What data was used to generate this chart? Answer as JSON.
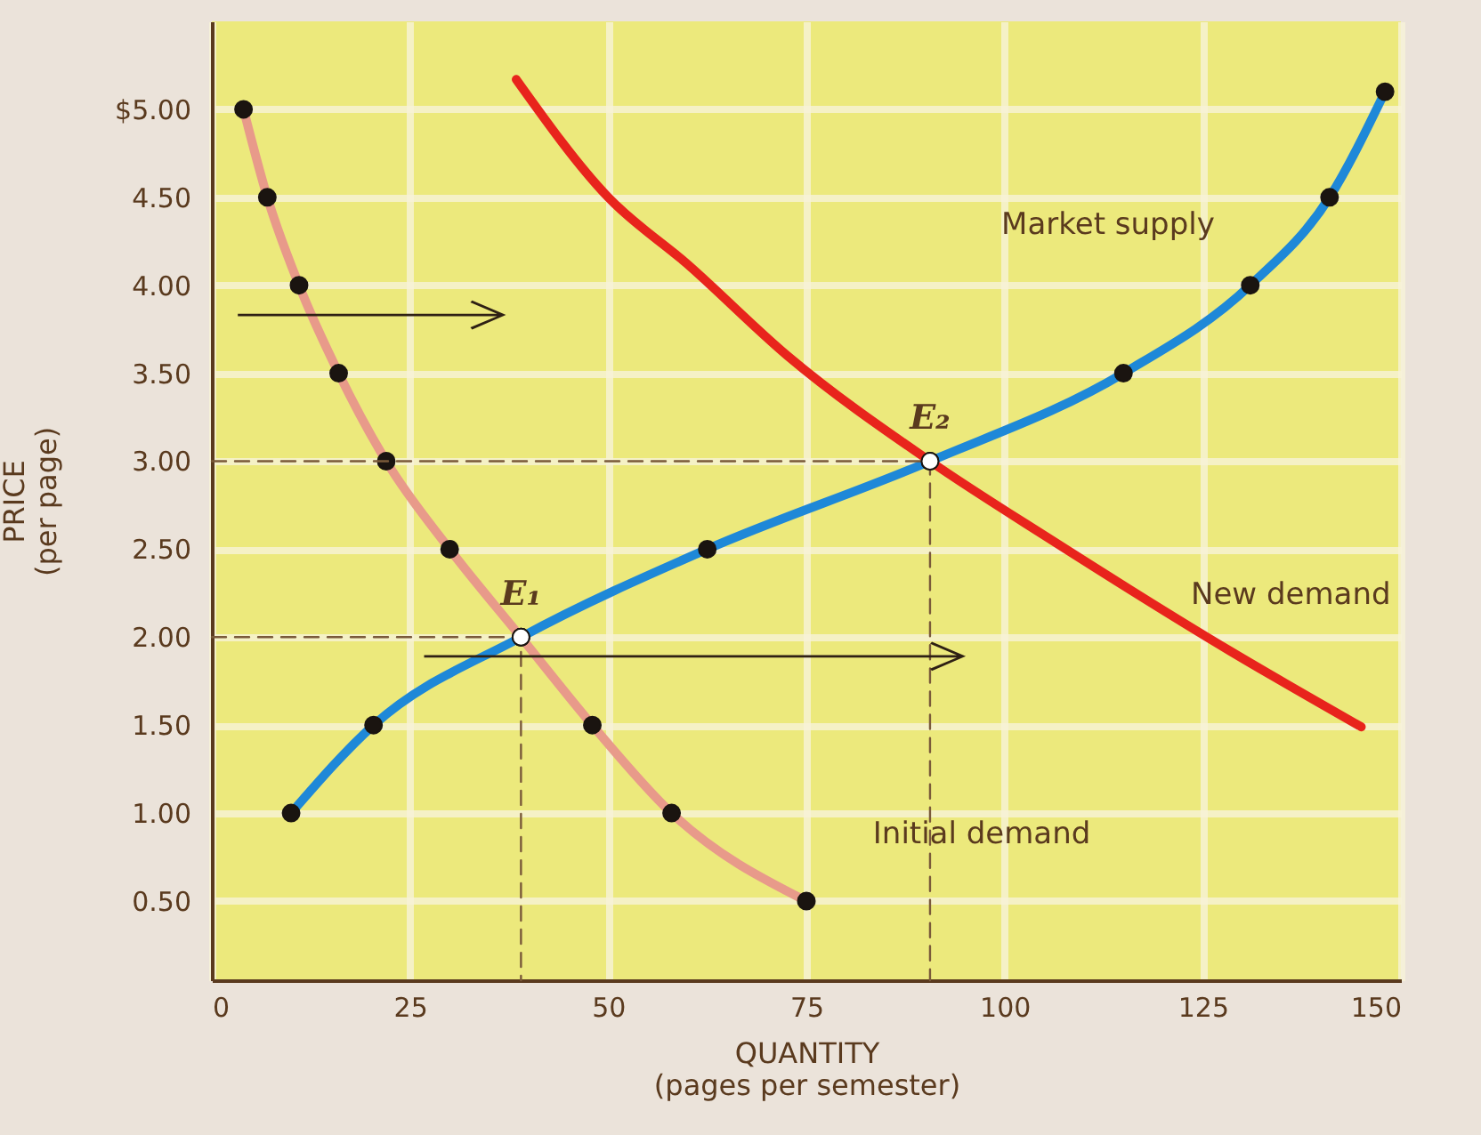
{
  "chart_data": {
    "type": "line",
    "xlabel": "QUANTITY\n(pages per semester)",
    "ylabel": "PRICE\n(per page)",
    "xlim": [
      0,
      150
    ],
    "ylim": [
      0.05,
      5.5
    ],
    "xticks": [
      0,
      25,
      50,
      75,
      100,
      125,
      150
    ],
    "yticks": [
      {
        "value": 0.5,
        "label": "0.50"
      },
      {
        "value": 1,
        "label": "1.00"
      },
      {
        "value": 1.5,
        "label": "1.50"
      },
      {
        "value": 2,
        "label": "2.00"
      },
      {
        "value": 2.5,
        "label": "2.50"
      },
      {
        "value": 3,
        "label": "3.00"
      },
      {
        "value": 3.5,
        "label": "3.50"
      },
      {
        "value": 4,
        "label": "4.00"
      },
      {
        "value": 4.5,
        "label": "4.50"
      },
      {
        "value": 5,
        "label": "$5.00"
      }
    ],
    "grid": true,
    "series": [
      {
        "name": "Initial demand",
        "color": "#e89a8a",
        "marker": "circle",
        "x": [
          4,
          7,
          11,
          16,
          22,
          30,
          39,
          48,
          58,
          75
        ],
        "values": [
          5.0,
          4.5,
          4.0,
          3.5,
          3.0,
          2.5,
          2.0,
          1.5,
          1.0,
          0.5
        ]
      },
      {
        "name": "Market supply",
        "color": "#1e88d8",
        "marker": "circle",
        "x": [
          10,
          20.4,
          39,
          62.5,
          90.6,
          115,
          131,
          141,
          148
        ],
        "values": [
          1.0,
          1.5,
          2.0,
          2.5,
          3.0,
          3.5,
          4.0,
          4.5,
          5.1
        ]
      },
      {
        "name": "New demand",
        "color": "#e8241c",
        "marker": "none",
        "x": [
          38.4,
          50,
          60,
          72.6,
          90.6,
          106,
          128.5,
          145
        ],
        "values": [
          5.17,
          4.5,
          4.12,
          3.6,
          3.0,
          2.55,
          1.92,
          1.49
        ]
      },
      {
        "color": "#7a5a3a",
        "marker": "none",
        "line_style": "dashed",
        "x": [
          0,
          39,
          39
        ],
        "values": [
          2.0,
          2.0,
          0.05
        ]
      },
      {
        "color": "#7a5a3a",
        "marker": "none",
        "line_style": "dashed",
        "x": [
          0,
          90.6,
          90.6
        ],
        "values": [
          3.0,
          3.0,
          0.05
        ]
      },
      {
        "type": "scatter",
        "color": "#ffffff",
        "marker": "circle",
        "x": [
          39,
          90.6
        ],
        "values": [
          2.0,
          3.0
        ]
      }
    ],
    "annotations": [
      {
        "text": "E₁",
        "x": 39,
        "y": 2.0
      },
      {
        "text": "E₂",
        "x": 90.6,
        "y": 3.0
      }
    ]
  }
}
